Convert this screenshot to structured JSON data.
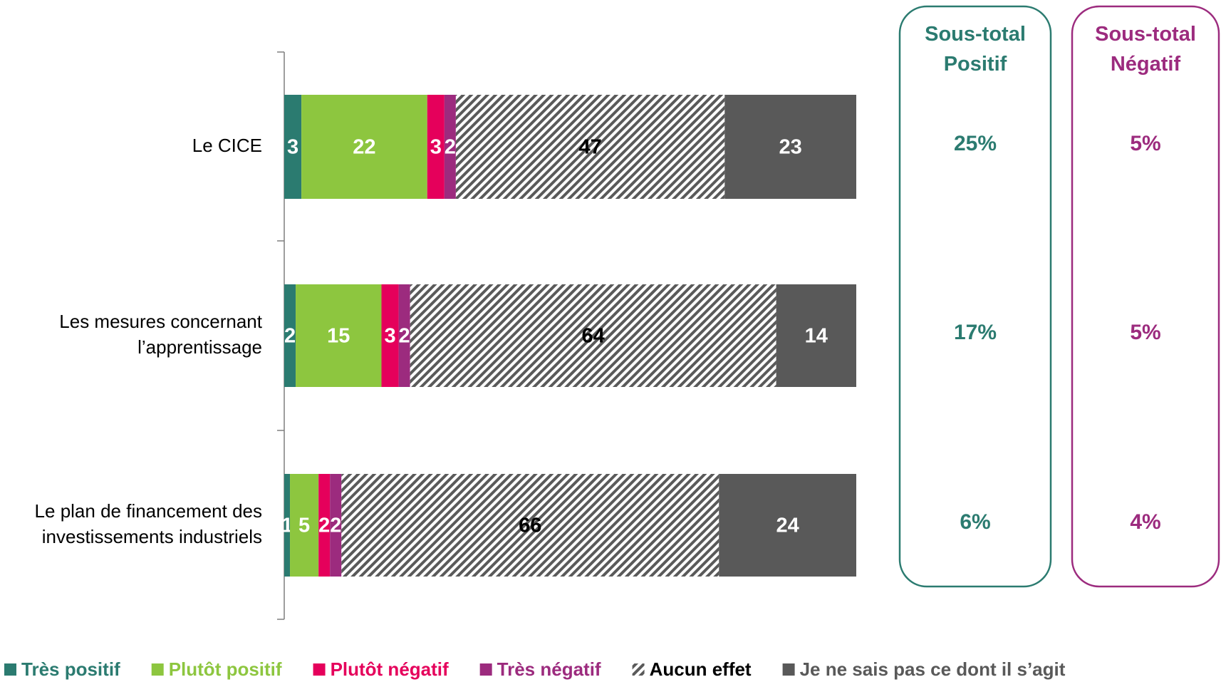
{
  "chart_data": {
    "type": "bar",
    "orientation": "horizontal",
    "stacked": true,
    "categories": [
      "Le CICE",
      "Les mesures concernant l’apprentissage",
      "Le plan de financement des investissements industriels"
    ],
    "series": [
      {
        "name": "Très positif",
        "color": "#2b7b70",
        "label_color": "#ffffff",
        "values": [
          3,
          2,
          1
        ]
      },
      {
        "name": "Plutôt positif",
        "color": "#8dc63f",
        "label_color": "#ffffff",
        "values": [
          22,
          15,
          5
        ]
      },
      {
        "name": "Plutôt négatif",
        "color": "#e5005b",
        "label_color": "#ffffff",
        "values": [
          3,
          3,
          2
        ]
      },
      {
        "name": "Très négatif",
        "color": "#9c2b7e",
        "label_color": "#ffffff",
        "values": [
          2,
          2,
          2
        ]
      },
      {
        "name": "Aucun effet",
        "color": "hatch",
        "label_color": "#000000",
        "values": [
          47,
          64,
          66
        ]
      },
      {
        "name": "Je ne sais pas ce dont il s’agit",
        "color": "#595959",
        "label_color": "#ffffff",
        "values": [
          23,
          14,
          24
        ]
      }
    ],
    "xlim": [
      0,
      100
    ],
    "subtotals": [
      {
        "title": "Sous-total Positif",
        "color": "#2b7b70",
        "values": [
          25,
          17,
          6
        ],
        "value_labels": [
          "25%",
          "17%",
          "6%"
        ]
      },
      {
        "title": "Sous-total Négatif",
        "color": "#9c2b7e",
        "values": [
          5,
          5,
          4
        ],
        "value_labels": [
          "5%",
          "5%",
          "4%"
        ]
      }
    ]
  }
}
